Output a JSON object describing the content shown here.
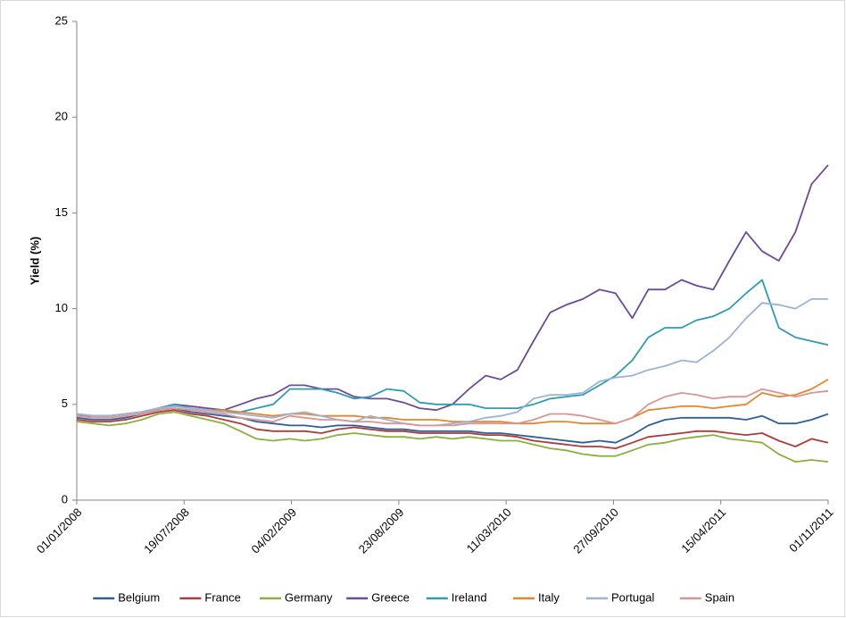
{
  "chart_data": {
    "type": "line",
    "y_label": "Yield (%)",
    "x": [
      "01/01/2008",
      "01/02/2008",
      "01/03/2008",
      "01/04/2008",
      "01/05/2008",
      "01/06/2008",
      "01/07/2008",
      "01/08/2008",
      "01/09/2008",
      "01/10/2008",
      "01/11/2008",
      "01/12/2008",
      "01/01/2009",
      "01/02/2009",
      "01/03/2009",
      "01/04/2009",
      "01/05/2009",
      "01/06/2009",
      "01/07/2009",
      "01/08/2009",
      "01/09/2009",
      "01/10/2009",
      "01/11/2009",
      "01/12/2009",
      "01/01/2010",
      "01/02/2010",
      "01/03/2010",
      "01/04/2010",
      "01/05/2010",
      "01/06/2010",
      "01/07/2010",
      "01/08/2010",
      "01/09/2010",
      "01/10/2010",
      "01/11/2010",
      "01/12/2010",
      "01/01/2011",
      "01/02/2011",
      "01/03/2011",
      "01/04/2011",
      "01/05/2011",
      "01/06/2011",
      "01/07/2011",
      "01/08/2011",
      "01/09/2011",
      "01/10/2011",
      "01/11/2011"
    ],
    "xlim": [
      "01/01/2008",
      "01/11/2011"
    ],
    "xticks": [
      "01/01/2008",
      "19/07/2008",
      "04/02/2009",
      "23/08/2009",
      "11/03/2010",
      "27/09/2010",
      "15/04/2011",
      "01/11/2011"
    ],
    "ylim": [
      0,
      25
    ],
    "yticks": [
      0,
      5,
      10,
      15,
      20,
      25
    ],
    "series": [
      {
        "name": "Belgium",
        "color": "#2f5f98",
        "values": [
          4.3,
          4.2,
          4.2,
          4.3,
          4.5,
          4.7,
          4.8,
          4.6,
          4.5,
          4.4,
          4.3,
          4.1,
          4.0,
          3.9,
          3.9,
          3.8,
          3.9,
          3.9,
          3.8,
          3.7,
          3.7,
          3.6,
          3.6,
          3.6,
          3.6,
          3.5,
          3.5,
          3.4,
          3.3,
          3.2,
          3.1,
          3.0,
          3.1,
          3.0,
          3.4,
          3.9,
          4.2,
          4.3,
          4.3,
          4.3,
          4.3,
          4.2,
          4.4,
          4.0,
          4.0,
          4.2,
          4.5
        ]
      },
      {
        "name": "France",
        "color": "#b03a3a",
        "values": [
          4.2,
          4.1,
          4.1,
          4.2,
          4.4,
          4.6,
          4.7,
          4.5,
          4.4,
          4.2,
          4.0,
          3.7,
          3.6,
          3.6,
          3.6,
          3.5,
          3.7,
          3.8,
          3.7,
          3.6,
          3.6,
          3.5,
          3.5,
          3.5,
          3.5,
          3.4,
          3.4,
          3.3,
          3.1,
          3.0,
          2.9,
          2.8,
          2.8,
          2.7,
          3.0,
          3.3,
          3.4,
          3.5,
          3.6,
          3.6,
          3.5,
          3.4,
          3.5,
          3.1,
          2.8,
          3.2,
          3.0
        ]
      },
      {
        "name": "Germany",
        "color": "#8cb03c",
        "values": [
          4.1,
          4.0,
          3.9,
          4.0,
          4.2,
          4.5,
          4.6,
          4.4,
          4.2,
          4.0,
          3.6,
          3.2,
          3.1,
          3.2,
          3.1,
          3.2,
          3.4,
          3.5,
          3.4,
          3.3,
          3.3,
          3.2,
          3.3,
          3.2,
          3.3,
          3.2,
          3.1,
          3.1,
          2.9,
          2.7,
          2.6,
          2.4,
          2.3,
          2.3,
          2.6,
          2.9,
          3.0,
          3.2,
          3.3,
          3.4,
          3.2,
          3.1,
          3.0,
          2.4,
          2.0,
          2.1,
          2.0
        ]
      },
      {
        "name": "Greece",
        "color": "#6c4b9a",
        "values": [
          4.4,
          4.4,
          4.4,
          4.5,
          4.6,
          4.8,
          5.0,
          4.9,
          4.8,
          4.7,
          5.0,
          5.3,
          5.5,
          6.0,
          6.0,
          5.8,
          5.8,
          5.4,
          5.3,
          5.3,
          5.1,
          4.8,
          4.7,
          5.0,
          5.8,
          6.5,
          6.3,
          6.8,
          8.3,
          9.8,
          10.2,
          10.5,
          11.0,
          10.8,
          9.5,
          11.0,
          11.0,
          11.5,
          11.2,
          11.0,
          12.5,
          14.0,
          13.0,
          12.5,
          14.0,
          16.5,
          17.5
        ]
      },
      {
        "name": "Ireland",
        "color": "#2e9bb0",
        "values": [
          4.5,
          4.4,
          4.4,
          4.5,
          4.6,
          4.8,
          5.0,
          4.8,
          4.7,
          4.6,
          4.6,
          4.8,
          5.0,
          5.8,
          5.8,
          5.8,
          5.6,
          5.3,
          5.4,
          5.8,
          5.7,
          5.1,
          5.0,
          5.0,
          5.0,
          4.8,
          4.8,
          4.8,
          5.0,
          5.3,
          5.4,
          5.5,
          6.0,
          6.5,
          7.3,
          8.5,
          9.0,
          9.0,
          9.4,
          9.6,
          10.0,
          10.8,
          11.5,
          9.0,
          8.5,
          8.3,
          8.1
        ]
      },
      {
        "name": "Italy",
        "color": "#e8862a",
        "values": [
          4.5,
          4.4,
          4.4,
          4.5,
          4.6,
          4.8,
          4.9,
          4.8,
          4.7,
          4.7,
          4.6,
          4.5,
          4.4,
          4.5,
          4.5,
          4.4,
          4.4,
          4.4,
          4.3,
          4.3,
          4.2,
          4.2,
          4.2,
          4.1,
          4.1,
          4.1,
          4.1,
          4.0,
          4.0,
          4.1,
          4.1,
          4.0,
          4.0,
          4.0,
          4.3,
          4.7,
          4.8,
          4.9,
          4.9,
          4.8,
          4.9,
          5.0,
          5.6,
          5.4,
          5.5,
          5.8,
          6.3
        ]
      },
      {
        "name": "Portugal",
        "color": "#9cb3d8",
        "values": [
          4.5,
          4.4,
          4.4,
          4.5,
          4.6,
          4.8,
          4.9,
          4.8,
          4.7,
          4.6,
          4.5,
          4.4,
          4.3,
          4.5,
          4.6,
          4.4,
          4.2,
          4.1,
          4.4,
          4.2,
          4.0,
          3.9,
          3.9,
          4.0,
          4.1,
          4.3,
          4.4,
          4.6,
          5.3,
          5.5,
          5.5,
          5.6,
          6.2,
          6.4,
          6.5,
          6.8,
          7.0,
          7.3,
          7.2,
          7.8,
          8.5,
          9.5,
          10.3,
          10.2,
          10.0,
          10.5,
          10.5
        ]
      },
      {
        "name": "Spain",
        "color": "#d99694",
        "values": [
          4.4,
          4.3,
          4.3,
          4.4,
          4.5,
          4.7,
          4.8,
          4.7,
          4.6,
          4.5,
          4.3,
          4.2,
          4.1,
          4.4,
          4.3,
          4.2,
          4.2,
          4.1,
          4.1,
          4.0,
          4.0,
          3.9,
          3.9,
          3.9,
          4.0,
          4.0,
          4.0,
          4.0,
          4.2,
          4.5,
          4.5,
          4.4,
          4.2,
          4.0,
          4.3,
          5.0,
          5.4,
          5.6,
          5.5,
          5.3,
          5.4,
          5.4,
          5.8,
          5.6,
          5.4,
          5.6,
          5.7
        ]
      }
    ]
  }
}
